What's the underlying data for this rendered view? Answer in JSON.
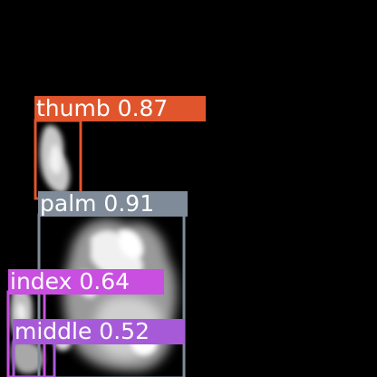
{
  "image": {
    "background": "#000000",
    "description_free": true
  },
  "detections": [
    {
      "id": "thumb",
      "class_name": "thumb",
      "score": "0.87",
      "color": "#e0552c"
    },
    {
      "id": "palm",
      "class_name": "palm",
      "score": "0.91",
      "color": "#7f8b98"
    },
    {
      "id": "index",
      "class_name": "index",
      "score": "0.64",
      "color": "#c84fe0"
    },
    {
      "id": "middle",
      "class_name": "middle",
      "score": "0.52",
      "color": "#a65ad8"
    }
  ],
  "labels": {
    "thumb": "thumb 0.87",
    "palm": "palm 0.91",
    "index": "index 0.64",
    "middle": "middle 0.52"
  }
}
